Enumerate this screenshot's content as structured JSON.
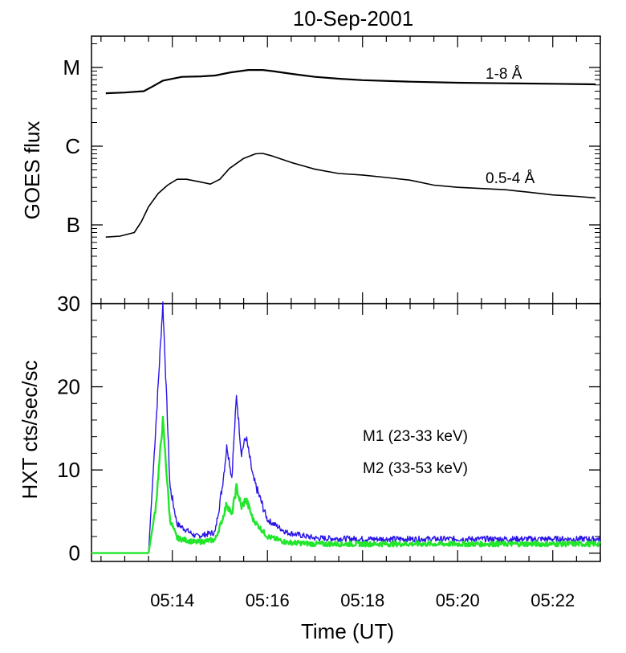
{
  "title": "10-Sep-2001",
  "chart_data": [
    {
      "type": "line",
      "panel": "top",
      "ylabel": "GOES flux",
      "y_scale": "log",
      "ytick_labels": [
        "B",
        "C",
        "M"
      ],
      "ytick_values": [
        1e-07,
        1e-06,
        1e-05
      ],
      "ylim": [
        1e-08,
        2.5e-05
      ],
      "xlim_minutes": [
        732.3,
        743.0
      ],
      "series": [
        {
          "name": "1-8 Å",
          "label": "1-8 Å",
          "color": "#000000",
          "x_minutes": [
            732.6,
            733.0,
            733.4,
            733.6,
            733.8,
            734.2,
            734.6,
            734.9,
            735.2,
            735.6,
            735.9,
            736.1,
            736.5,
            737.0,
            737.5,
            738.0,
            739.0,
            740.0,
            741.0,
            742.0,
            742.9
          ],
          "values": [
            4.7e-06,
            4.8e-06,
            5e-06,
            5.8e-06,
            6.8e-06,
            7.6e-06,
            7.7e-06,
            7.9e-06,
            8.6e-06,
            9.3e-06,
            9.3e-06,
            9e-06,
            8.3e-06,
            7.6e-06,
            7.2e-06,
            6.9e-06,
            6.6e-06,
            6.4e-06,
            6.3e-06,
            6.2e-06,
            6.1e-06
          ]
        },
        {
          "name": "0.5-4 Å",
          "label": "0.5-4 Å",
          "color": "#000000",
          "x_minutes": [
            732.6,
            732.9,
            733.2,
            733.35,
            733.5,
            733.7,
            733.9,
            734.1,
            734.3,
            734.6,
            734.8,
            735.0,
            735.2,
            735.5,
            735.75,
            735.9,
            736.1,
            736.5,
            737.0,
            737.5,
            738.0,
            738.5,
            739.0,
            739.5,
            740.0,
            740.5,
            741.0,
            741.5,
            742.0,
            742.5,
            742.9
          ],
          "values": [
            7e-08,
            7.2e-08,
            8e-08,
            1.1e-07,
            1.7e-07,
            2.5e-07,
            3.2e-07,
            3.8e-07,
            3.8e-07,
            3.5e-07,
            3.3e-07,
            3.8e-07,
            5.2e-07,
            7e-07,
            8e-07,
            8.1e-07,
            7.5e-07,
            6.2e-07,
            5.1e-07,
            4.5e-07,
            4.3e-07,
            4e-07,
            3.7e-07,
            3.2e-07,
            3e-07,
            2.9e-07,
            2.8e-07,
            2.6e-07,
            2.4e-07,
            2.3e-07,
            2.2e-07
          ]
        }
      ]
    },
    {
      "type": "line",
      "panel": "bottom",
      "ylabel": "HXT  cts/sec/sc",
      "xlabel": "Time (UT)",
      "ylim": [
        -1,
        30
      ],
      "yticks": [
        0,
        10,
        20,
        30
      ],
      "ytick_labels": [
        "0",
        "10",
        "20",
        "30"
      ],
      "xlim_minutes": [
        732.3,
        743.0
      ],
      "xticks_minutes": [
        734,
        736,
        738,
        740,
        742
      ],
      "xtick_labels": [
        "05:14",
        "05:16",
        "05:18",
        "05:20",
        "05:22"
      ],
      "series": [
        {
          "name": "M1",
          "label": "M1 (23-33 keV)",
          "color": "#2b16e6",
          "x_minutes": [
            732.3,
            733.5,
            733.65,
            733.8,
            733.85,
            733.95,
            734.1,
            734.5,
            734.9,
            735.05,
            735.15,
            735.25,
            735.35,
            735.45,
            735.55,
            735.7,
            736.0,
            736.4,
            737.0,
            738.0,
            740.0,
            743.0
          ],
          "values": [
            0,
            0,
            15,
            30,
            23,
            8,
            3.5,
            2,
            2.5,
            8,
            13,
            9,
            19,
            12,
            14,
            9,
            4,
            2.5,
            1.8,
            1.7,
            1.7,
            1.7
          ],
          "noise": 0.35
        },
        {
          "name": "M2",
          "label": "M2 (33-53 keV)",
          "color": "#22e62b",
          "x_minutes": [
            732.3,
            733.5,
            733.65,
            733.8,
            733.85,
            733.95,
            734.1,
            734.5,
            734.9,
            735.05,
            735.15,
            735.25,
            735.35,
            735.45,
            735.55,
            735.7,
            736.0,
            736.4,
            737.0,
            738.0,
            740.0,
            743.0
          ],
          "values": [
            0,
            0,
            5.5,
            16,
            12,
            4,
            1.8,
            1.3,
            1.6,
            4,
            6,
            4.5,
            8,
            5.5,
            6.5,
            4,
            2,
            1.3,
            1.1,
            1.1,
            1.1,
            1.1
          ],
          "noise": 0.3
        }
      ]
    }
  ]
}
